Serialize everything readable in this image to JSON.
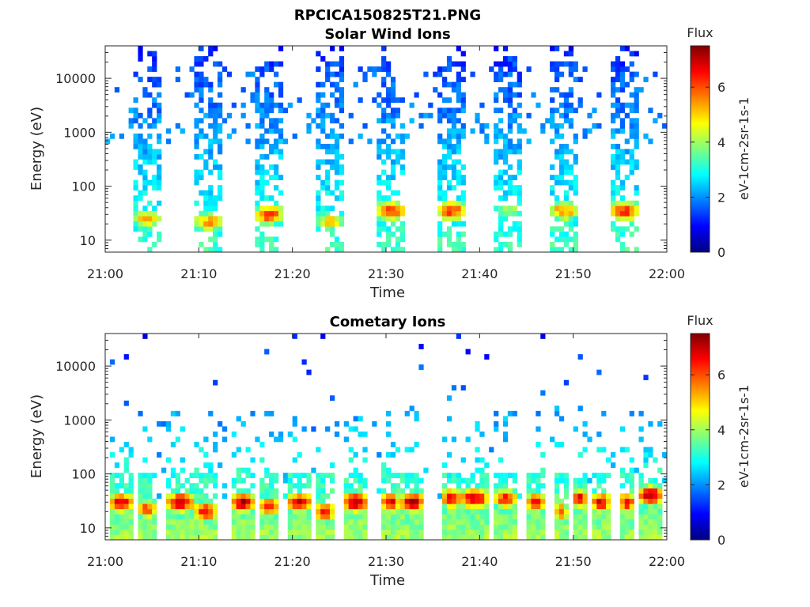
{
  "figure_title": "RPCICA150825T21.PNG",
  "colors": {
    "axis": "#262626",
    "colormap": [
      "#00007f",
      "#0000ff",
      "#007fff",
      "#00ffff",
      "#7fff7f",
      "#ffff00",
      "#ff7f00",
      "#ff0000",
      "#7f0000"
    ]
  },
  "chart_data": [
    {
      "type": "heatmap",
      "title": "Solar Wind Ions",
      "xlabel": "Time",
      "ylabel": "Energy (eV)",
      "x_ticks": [
        "21:00",
        "21:10",
        "21:20",
        "21:30",
        "21:40",
        "21:50",
        "22:00"
      ],
      "xlim": [
        "21:00",
        "22:00"
      ],
      "y_scale": "log",
      "y_ticks": [
        10,
        100,
        1000,
        10000
      ],
      "y_tick_labels": [
        "10",
        "100",
        "1000",
        "10000"
      ],
      "ylim": [
        6,
        40000
      ],
      "colorbar": {
        "title": "Flux",
        "label": "eV-1cm-2sr-1s-1",
        "range": [
          0,
          7.5
        ],
        "ticks": [
          "0",
          "2",
          "4",
          "6"
        ]
      },
      "bursts": [
        {
          "start_min": 3,
          "end_min": 6,
          "peak_energy_eV": 25,
          "peak_flux": 5.2
        },
        {
          "start_min": 9.5,
          "end_min": 12.5,
          "peak_energy_eV": 22,
          "peak_flux": 5.5
        },
        {
          "start_min": 16,
          "end_min": 19,
          "peak_energy_eV": 30,
          "peak_flux": 6.2
        },
        {
          "start_min": 22.5,
          "end_min": 25.5,
          "peak_energy_eV": 22,
          "peak_flux": 5.0
        },
        {
          "start_min": 29,
          "end_min": 32,
          "peak_energy_eV": 35,
          "peak_flux": 6.4
        },
        {
          "start_min": 35.5,
          "end_min": 38.5,
          "peak_energy_eV": 35,
          "peak_flux": 6.2
        },
        {
          "start_min": 41.5,
          "end_min": 44.5,
          "peak_energy_eV": 35,
          "peak_flux": 4.2
        },
        {
          "start_min": 47.5,
          "end_min": 50.5,
          "peak_energy_eV": 35,
          "peak_flux": 5.6
        },
        {
          "start_min": 54,
          "end_min": 57,
          "peak_energy_eV": 35,
          "peak_flux": 6.3
        }
      ]
    },
    {
      "type": "heatmap",
      "title": "Cometary Ions",
      "xlabel": "Time",
      "ylabel": "Energy (eV)",
      "x_ticks": [
        "21:00",
        "21:10",
        "21:20",
        "21:30",
        "21:40",
        "21:50",
        "22:00"
      ],
      "xlim": [
        "21:00",
        "22:00"
      ],
      "y_scale": "log",
      "y_ticks": [
        10,
        100,
        1000,
        10000
      ],
      "y_tick_labels": [
        "10",
        "100",
        "1000",
        "10000"
      ],
      "ylim": [
        6,
        40000
      ],
      "colorbar": {
        "title": "Flux",
        "label": "eV-1cm-2sr-1s-1",
        "range": [
          0,
          7.5
        ],
        "ticks": [
          "0",
          "2",
          "4",
          "6"
        ]
      },
      "bursts": [
        {
          "start_min": 0.5,
          "end_min": 3,
          "peak_energy_eV": 30,
          "peak_flux": 6.8
        },
        {
          "start_min": 3.5,
          "end_min": 5.5,
          "peak_energy_eV": 22,
          "peak_flux": 6.2
        },
        {
          "start_min": 6.5,
          "end_min": 9.5,
          "peak_energy_eV": 30,
          "peak_flux": 7.0
        },
        {
          "start_min": 9.5,
          "end_min": 12,
          "peak_energy_eV": 20,
          "peak_flux": 6.6
        },
        {
          "start_min": 13.5,
          "end_min": 16,
          "peak_energy_eV": 30,
          "peak_flux": 7.2
        },
        {
          "start_min": 16.5,
          "end_min": 18.5,
          "peak_energy_eV": 25,
          "peak_flux": 6.6
        },
        {
          "start_min": 19.5,
          "end_min": 22,
          "peak_energy_eV": 30,
          "peak_flux": 7.0
        },
        {
          "start_min": 22.5,
          "end_min": 24.5,
          "peak_energy_eV": 20,
          "peak_flux": 6.6
        },
        {
          "start_min": 25.5,
          "end_min": 28,
          "peak_energy_eV": 30,
          "peak_flux": 7.3
        },
        {
          "start_min": 29.5,
          "end_min": 31.5,
          "peak_energy_eV": 30,
          "peak_flux": 6.8
        },
        {
          "start_min": 31.5,
          "end_min": 34,
          "peak_energy_eV": 30,
          "peak_flux": 7.3
        },
        {
          "start_min": 36,
          "end_min": 38,
          "peak_energy_eV": 35,
          "peak_flux": 6.8
        },
        {
          "start_min": 38,
          "end_min": 41,
          "peak_energy_eV": 35,
          "peak_flux": 7.0
        },
        {
          "start_min": 41.5,
          "end_min": 44,
          "peak_energy_eV": 35,
          "peak_flux": 6.4
        },
        {
          "start_min": 45,
          "end_min": 47,
          "peak_energy_eV": 30,
          "peak_flux": 6.8
        },
        {
          "start_min": 48,
          "end_min": 49.5,
          "peak_energy_eV": 20,
          "peak_flux": 5.8
        },
        {
          "start_min": 50,
          "end_min": 51.5,
          "peak_energy_eV": 35,
          "peak_flux": 6.8
        },
        {
          "start_min": 52,
          "end_min": 54,
          "peak_energy_eV": 30,
          "peak_flux": 6.8
        },
        {
          "start_min": 55,
          "end_min": 56.5,
          "peak_energy_eV": 30,
          "peak_flux": 6.8
        },
        {
          "start_min": 57,
          "end_min": 59.5,
          "peak_energy_eV": 40,
          "peak_flux": 7.2
        }
      ]
    }
  ]
}
